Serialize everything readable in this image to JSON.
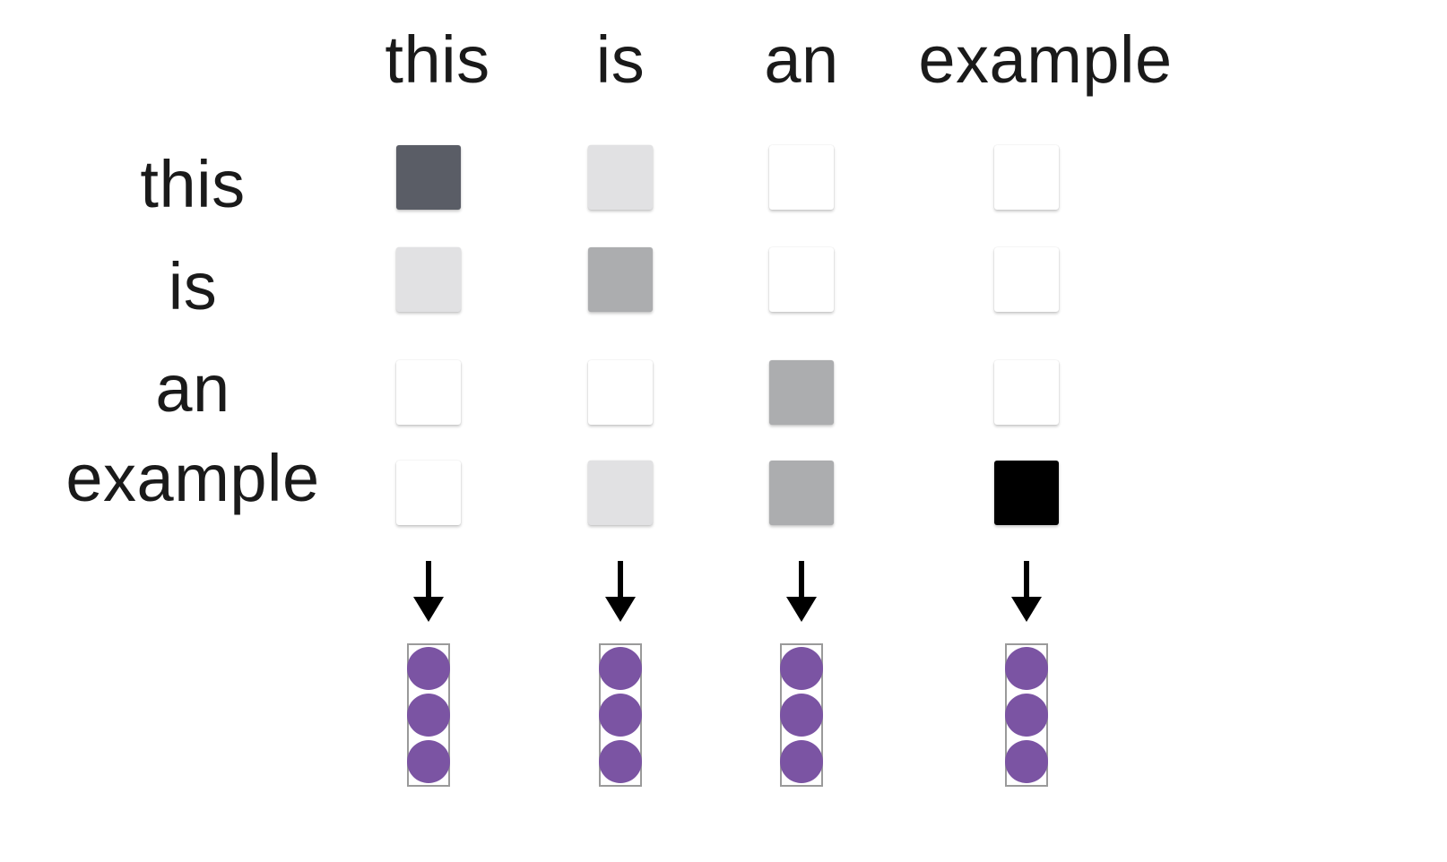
{
  "columns": [
    "this",
    "is",
    "an",
    "example"
  ],
  "rows": [
    "this",
    "is",
    "an",
    "example"
  ],
  "matrix_colors": [
    [
      "#5a5d66",
      "#e1e1e3",
      "#ffffff",
      "#ffffff"
    ],
    [
      "#e1e1e3",
      "#acadaf",
      "#ffffff",
      "#ffffff"
    ],
    [
      "#ffffff",
      "#ffffff",
      "#acadaf",
      "#ffffff"
    ],
    [
      "#ffffff",
      "#e1e1e3",
      "#acadaf",
      "#000000"
    ]
  ],
  "output_vectors": {
    "count": 4,
    "circles_per_vector": 3,
    "circle_color": "#7b54a3",
    "icon": "arrow-down-icon"
  }
}
